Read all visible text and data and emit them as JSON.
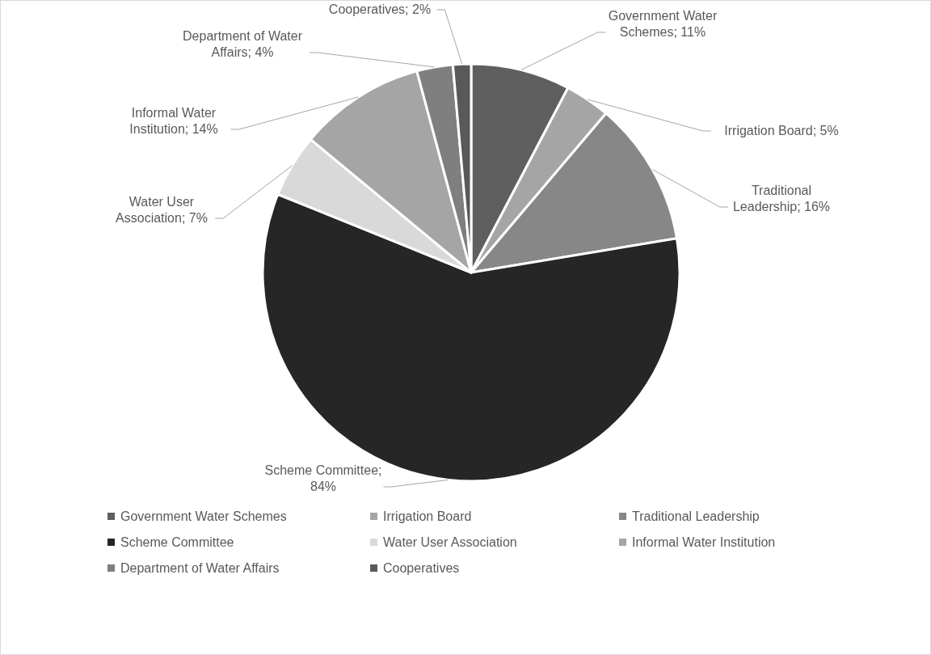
{
  "chart_data": {
    "type": "pie",
    "categories": [
      "Government Water Schemes",
      "Irrigation Board",
      "Traditional Leadership",
      "Scheme Committee",
      "Water User Association",
      "Informal Water Institution",
      "Department of Water Affairs",
      "Cooperatives"
    ],
    "values": [
      11,
      5,
      16,
      84,
      7,
      14,
      4,
      2
    ],
    "value_labels": [
      "Government Water Schemes; 11%",
      "Irrigation Board; 5%",
      "Traditional Leadership; 16%",
      "Scheme Committee; 84%",
      "Water User Association; 7%",
      "Informal Water Institution; 14%",
      "Department of Water Affairs; 4%",
      "Cooperatives; 2%"
    ],
    "colors": [
      "#5f5f5f",
      "#a5a5a5",
      "#878787",
      "#262626",
      "#d9d9d9",
      "#a5a5a5",
      "#7f7f7f",
      "#595959"
    ],
    "legend": "bottom"
  }
}
